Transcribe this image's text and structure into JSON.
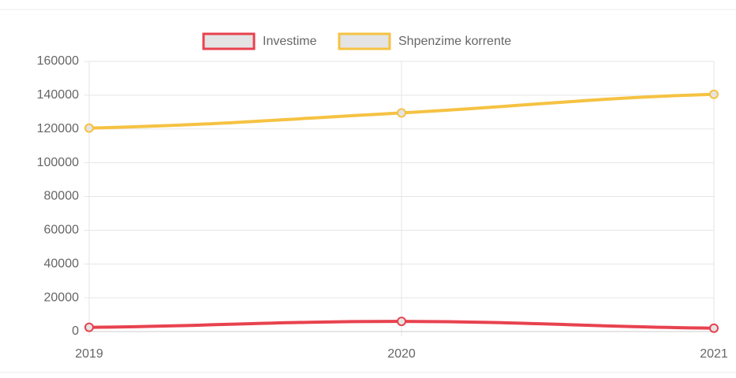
{
  "chart_data": {
    "type": "line",
    "categories": [
      "2019",
      "2020",
      "2021"
    ],
    "series": [
      {
        "name": "Investime",
        "color": "#e8424f",
        "values": [
          2500,
          6000,
          2000
        ]
      },
      {
        "name": "Shpenzime korrente",
        "color": "#f5c242",
        "values": [
          120500,
          129500,
          140500
        ]
      }
    ],
    "ylim": [
      0,
      160000
    ],
    "yticks": [
      0,
      20000,
      40000,
      60000,
      80000,
      100000,
      120000,
      140000,
      160000
    ],
    "grid": true,
    "legend": "top"
  }
}
